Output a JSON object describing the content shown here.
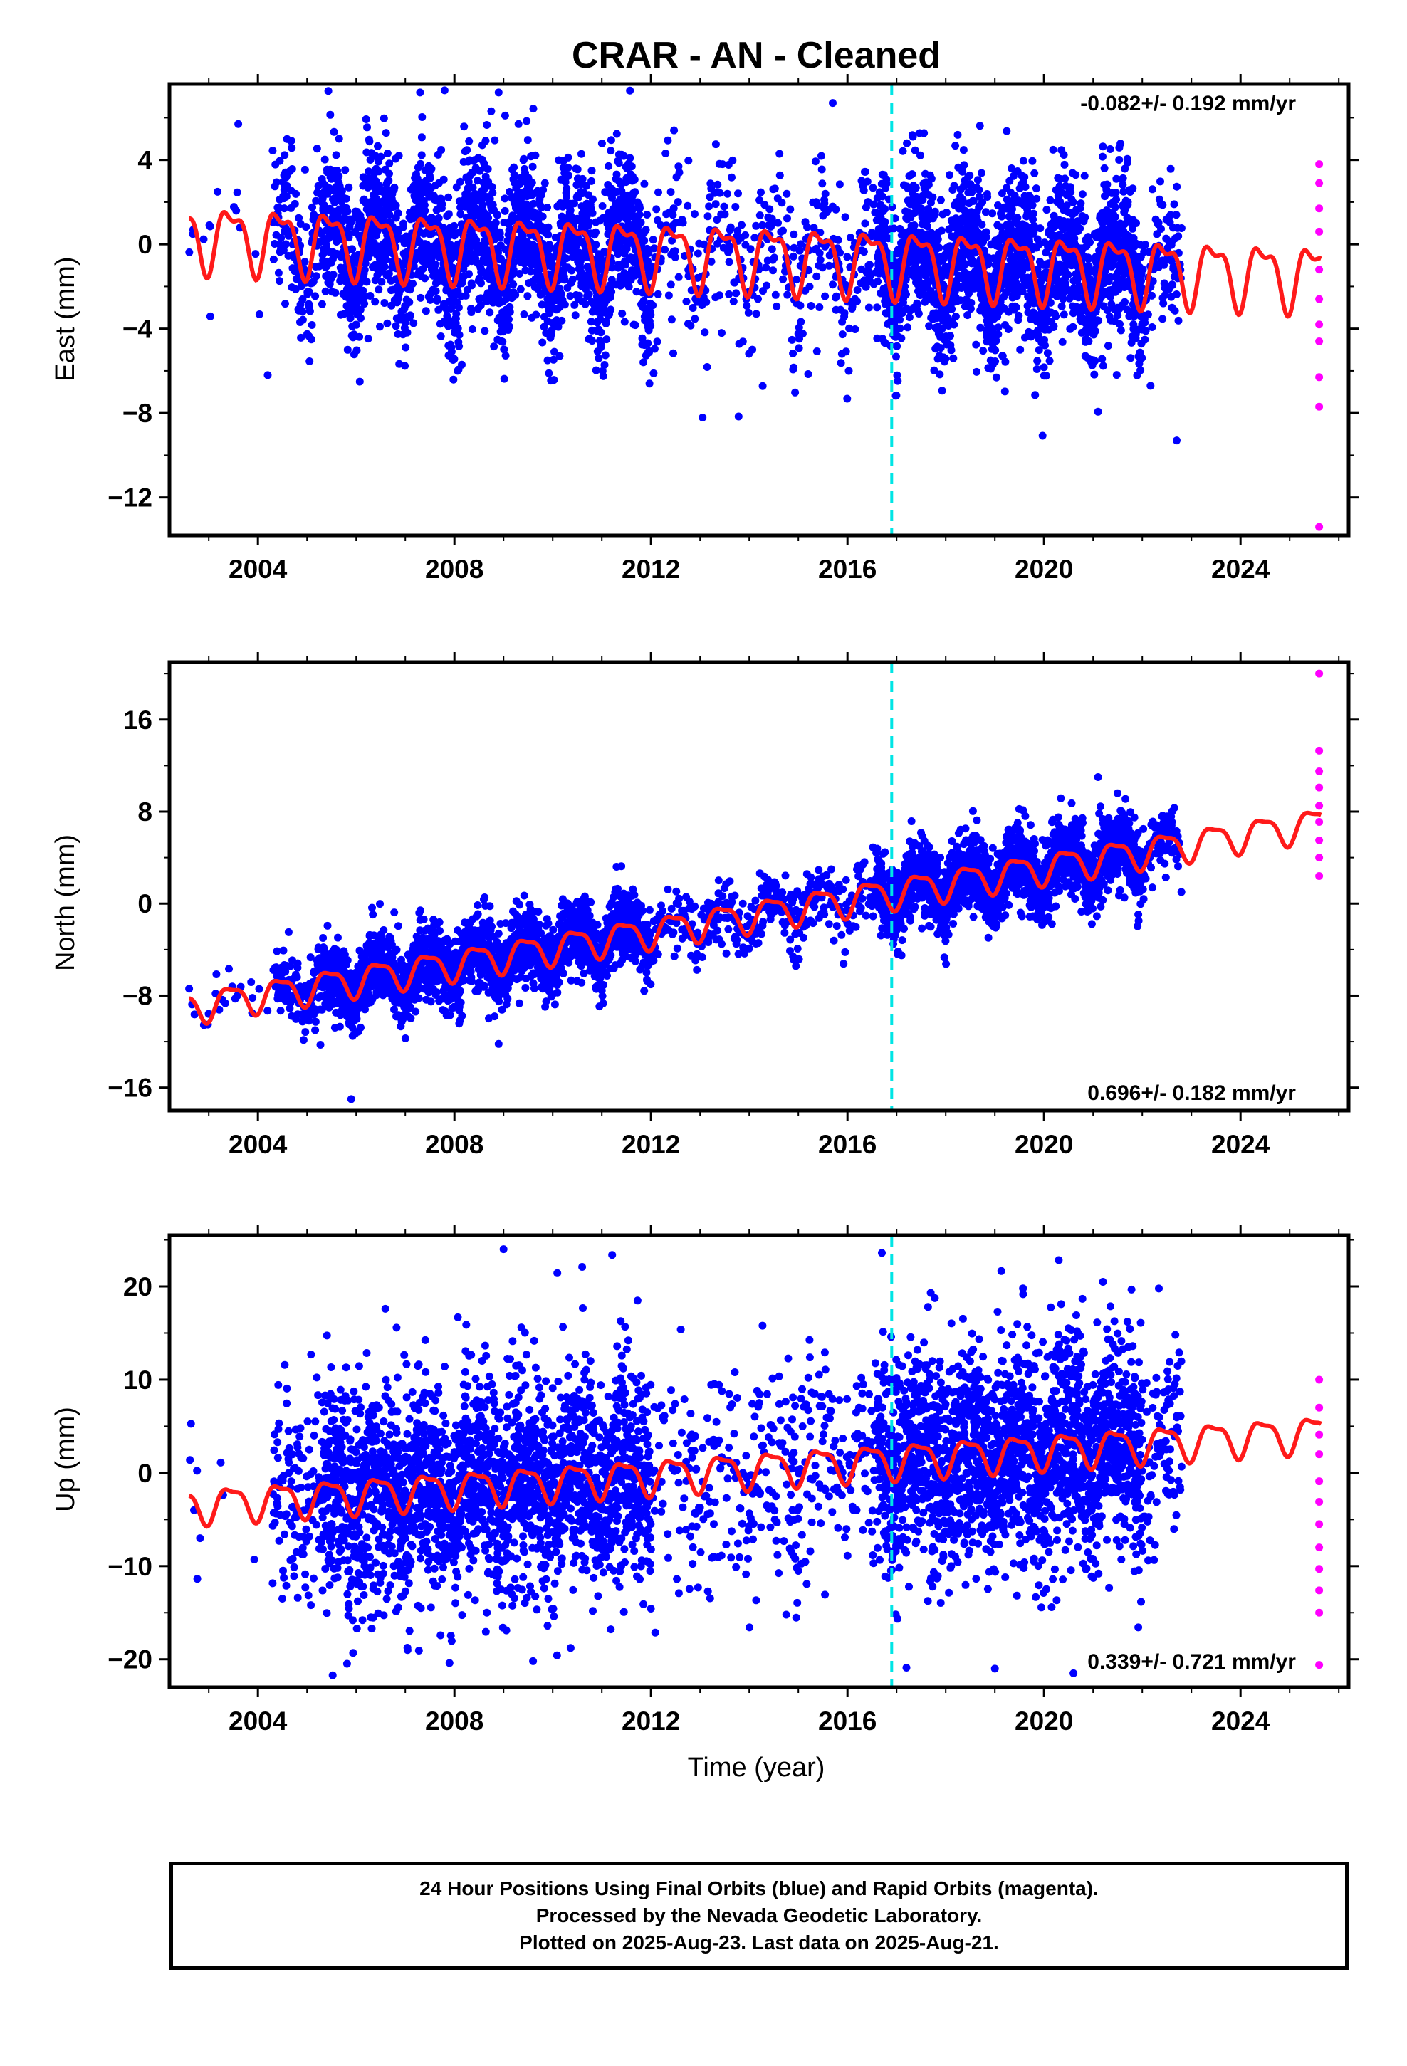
{
  "colors": {
    "final": "#0000ff",
    "rapid": "#ff00ff",
    "model": "#ff1a1a",
    "event": "#00e5e5",
    "frame": "#000000"
  },
  "footer": {
    "line1": "24 Hour Positions Using Final Orbits (blue) and Rapid Orbits (magenta).",
    "line2": "Processed by the Nevada Geodetic Laboratory.",
    "line3": "Plotted on 2025-Aug-23. Last data on 2025-Aug-21."
  },
  "chart_data": {
    "type": "scatter",
    "title": "CRAR  - AN - Cleaned",
    "xlabel": "Time (year)",
    "xlim": [
      2002.2,
      2026.2
    ],
    "x_ticks": [
      2004,
      2008,
      2012,
      2016,
      2020,
      2024
    ],
    "event_line_x": 2016.9,
    "panels": [
      {
        "name": "east",
        "ylabel": "East (mm)",
        "ylim": [
          -13.8,
          7.6
        ],
        "y_ticks": [
          4,
          0,
          -4,
          -8,
          -12
        ],
        "y_tick_labels": [
          "4",
          "0",
          "−4",
          "−8",
          "−12"
        ],
        "rate_text": "-0.082+/- 0.192 mm/yr",
        "rate_position": "top-right",
        "trend": {
          "rate_mm_per_yr": -0.082,
          "offset_mm_at_2002_6": 0.4,
          "annual_amplitude_mm": 1.4,
          "semiannual_amplitude_mm": 0.6
        },
        "scatter_sigma_mm": 1.9,
        "outliers": [
          [
            2003.6,
            5.7
          ],
          [
            2007.3,
            7.2
          ],
          [
            2007.8,
            7.3
          ],
          [
            2008.9,
            7.2
          ],
          [
            2015.7,
            6.7
          ],
          [
            2022.7,
            -9.3
          ],
          [
            2004.2,
            -6.2
          ]
        ],
        "rapid_points": [
          [
            2025.6,
            3.8
          ],
          [
            2025.6,
            2.9
          ],
          [
            2025.6,
            1.7
          ],
          [
            2025.6,
            0.6
          ],
          [
            2025.6,
            -1.2
          ],
          [
            2025.6,
            -2.6
          ],
          [
            2025.6,
            -3.8
          ],
          [
            2025.6,
            -4.6
          ],
          [
            2025.6,
            -6.3
          ],
          [
            2025.6,
            -7.7
          ],
          [
            2025.6,
            -13.4
          ]
        ]
      },
      {
        "name": "north",
        "ylabel": "North (mm)",
        "ylim": [
          -18.0,
          21.0
        ],
        "y_ticks": [
          16,
          8,
          0,
          -8,
          -16
        ],
        "y_tick_labels": [
          "16",
          "8",
          "0",
          "−8",
          "−16"
        ],
        "rate_text": "0.696+/- 0.182 mm/yr",
        "rate_position": "bottom-right",
        "trend": {
          "rate_mm_per_yr": 0.696,
          "offset_mm_at_2002_6": -9.0,
          "annual_amplitude_mm": 1.3,
          "semiannual_amplitude_mm": 0.4
        },
        "scatter_sigma_mm": 1.6,
        "outliers": [
          [
            2005.9,
            -17.0
          ],
          [
            2008.9,
            -12.2
          ],
          [
            2011.3,
            3.2
          ],
          [
            2017.1,
            -4.5
          ],
          [
            2021.1,
            11.0
          ],
          [
            2002.6,
            -7.4
          ]
        ],
        "rapid_points": [
          [
            2025.6,
            20.0
          ],
          [
            2025.6,
            13.3
          ],
          [
            2025.6,
            11.5
          ],
          [
            2025.6,
            10.1
          ],
          [
            2025.6,
            8.5
          ],
          [
            2025.6,
            7.1
          ],
          [
            2025.6,
            5.5
          ],
          [
            2025.6,
            4.0
          ],
          [
            2025.6,
            2.4
          ]
        ]
      },
      {
        "name": "up",
        "ylabel": "Up (mm)",
        "ylim": [
          -23.0,
          25.5
        ],
        "y_ticks": [
          20,
          10,
          0,
          -10,
          -20
        ],
        "y_tick_labels": [
          "20",
          "10",
          "0",
          "−10",
          "−20"
        ],
        "rate_text": "0.339+/- 0.721 mm/yr",
        "rate_position": "bottom-right",
        "trend": {
          "rate_mm_per_yr": 0.339,
          "offset_mm_at_2002_6": -3.5,
          "annual_amplitude_mm": 1.8,
          "semiannual_amplitude_mm": 0.6
        },
        "scatter_sigma_mm": 6.0,
        "outliers": [
          [
            2009.0,
            24.0
          ],
          [
            2016.7,
            23.6
          ],
          [
            2010.6,
            22.1
          ],
          [
            2021.2,
            20.5
          ],
          [
            2007.9,
            -20.4
          ],
          [
            2009.6,
            -20.2
          ],
          [
            2017.2,
            -20.9
          ],
          [
            2019.0,
            -21.0
          ],
          [
            2020.6,
            -21.5
          ],
          [
            2002.7,
            -4.0
          ]
        ],
        "rapid_points": [
          [
            2025.6,
            10.0
          ],
          [
            2025.6,
            7.0
          ],
          [
            2025.6,
            4.1
          ],
          [
            2025.6,
            2.0
          ],
          [
            2025.6,
            -0.9
          ],
          [
            2025.6,
            -3.1
          ],
          [
            2025.6,
            -5.5
          ],
          [
            2025.6,
            -8.0
          ],
          [
            2025.6,
            -10.3
          ],
          [
            2025.6,
            -12.6
          ],
          [
            2025.6,
            -15.0
          ],
          [
            2025.6,
            -20.6
          ]
        ]
      }
    ]
  }
}
